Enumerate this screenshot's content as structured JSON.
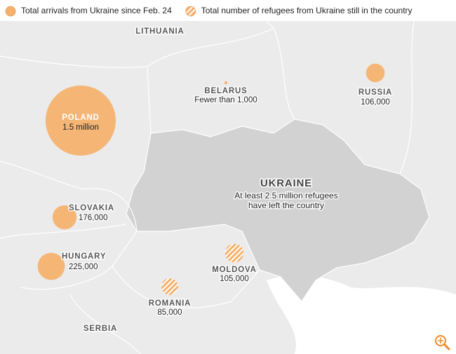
{
  "legend": [
    {
      "label": "Total arrivals from Ukraine since Feb. 24",
      "style": "arrivals"
    },
    {
      "label": "Total number of refugees from Ukraine still in the country",
      "style": "remaining"
    }
  ],
  "countries": [
    {
      "name": "POLAND",
      "label": "1.5 million",
      "value": 1500000,
      "style": "arrivals"
    },
    {
      "name": "RUSSIA",
      "label": "106,000",
      "value": 106000,
      "style": "arrivals"
    },
    {
      "name": "SLOVAKIA",
      "label": "176,000",
      "value": 176000,
      "style": "arrivals"
    },
    {
      "name": "HUNGARY",
      "label": "225,000",
      "value": 225000,
      "style": "arrivals"
    },
    {
      "name": "ROMANIA",
      "label": "85,000",
      "value": 85000,
      "style": "remaining"
    },
    {
      "name": "MOLDOVA",
      "label": "105,000",
      "value": 105000,
      "style": "remaining"
    },
    {
      "name": "BELARUS",
      "label": "Fewer than 1,000",
      "style": "arrivals"
    }
  ],
  "ukraine": {
    "name": "UKRAINE",
    "lines": [
      "At least 2.5 million refugees",
      "have left the country"
    ]
  },
  "other_labels": [
    "LITHUANIA",
    "SERBIA"
  ]
}
